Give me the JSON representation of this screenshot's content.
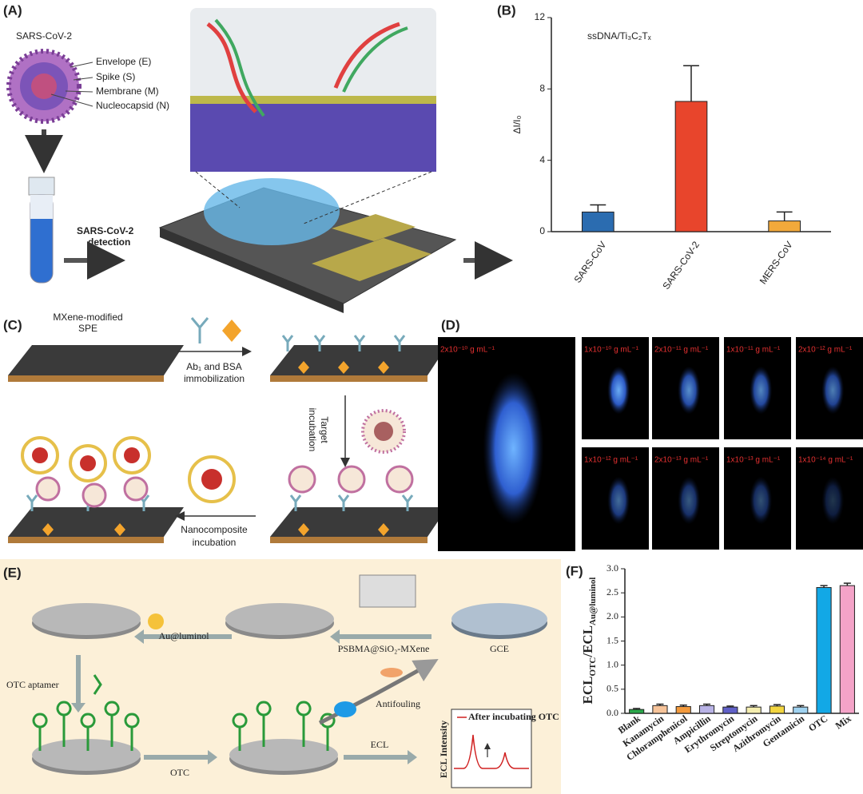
{
  "panel_labels": [
    "(A)",
    "(B)",
    "(C)",
    "(D)",
    "(E)",
    "(F)"
  ],
  "panel_a": {
    "virus_title": "SARS-CoV-2",
    "parts": [
      "Envelope (E)",
      "Spike (S)",
      "Membrane (M)",
      "Nucleocapsid (N)"
    ],
    "detection": [
      "SARS-CoV-2",
      "detection"
    ]
  },
  "panel_c": {
    "electrode": [
      "MXene-modified",
      "SPE"
    ],
    "step1": [
      "Ab₁ and BSA",
      "immobilization"
    ],
    "step2": [
      "Target",
      "incubation"
    ],
    "step3": [
      "Nanocomposite",
      "incubation"
    ]
  },
  "panel_d": {
    "labels": [
      "2x10⁻¹⁰ g mL⁻¹",
      "1x10⁻¹⁰ g mL⁻¹",
      "2x10⁻¹¹ g mL⁻¹",
      "1x10⁻¹¹ g mL⁻¹",
      "2x10⁻¹² g mL⁻¹",
      "1x10⁻¹² g mL⁻¹",
      "2x10⁻¹³ g mL⁻¹",
      "1x10⁻¹³ g mL⁻¹",
      "1x10⁻¹⁴ g mL⁻¹"
    ]
  },
  "panel_e": {
    "au": "Au@luminol",
    "psbma": "PSBMA@SiO₂-MXene",
    "gce": "GCE",
    "aptamer": "OTC aptamer",
    "antifouling": "Antifouling",
    "otc": "OTC",
    "ecl": "ECL",
    "ecl_axis": "ECL Intensity",
    "ecl_legend": "After incubating OTC"
  },
  "chart_data": [
    {
      "type": "bar",
      "annotation": "ssDNA/Ti₃C₂Tₓ",
      "ylabel": "ΔI/I₀",
      "categories": [
        "SARS-CoV",
        "SARS-CoV-2",
        "MERS-CoV"
      ],
      "values": [
        1.1,
        7.3,
        0.6
      ],
      "errors": [
        0.4,
        2.0,
        0.5
      ],
      "error_bars": "up",
      "colors": [
        "#2b6cb0",
        "#e8452c",
        "#f2a93b"
      ],
      "ylim": [
        0,
        12
      ],
      "yticks": [
        0,
        4,
        8,
        12
      ]
    },
    {
      "type": "bar",
      "ylabel": [
        "ECL",
        "OTC",
        "/ECL",
        "Au@luminol"
      ],
      "categories": [
        "Blank",
        "Kanamycin",
        "Chloramphenicol",
        "Ampicillin",
        "Erythromycin",
        "Streptomycin",
        "Azithromycin",
        "Gentamicin",
        "OTC",
        "Mix"
      ],
      "values": [
        0.08,
        0.16,
        0.14,
        0.16,
        0.13,
        0.13,
        0.15,
        0.13,
        2.61,
        2.65
      ],
      "errors": [
        0.02,
        0.03,
        0.03,
        0.03,
        0.02,
        0.03,
        0.03,
        0.03,
        0.04,
        0.05
      ],
      "error_bars": "both",
      "colors": [
        "#2aa84a",
        "#f7c49a",
        "#f39a3c",
        "#b9b3e6",
        "#6060c8",
        "#f5eeb0",
        "#f3d640",
        "#9fd2f0",
        "#12a8e6",
        "#f4a3c8"
      ],
      "ylim": [
        0,
        3.0
      ],
      "yticks": [
        {
          "value": 0,
          "label": "0.0"
        },
        0.5,
        {
          "value": 1,
          "label": "1.0"
        },
        1.5,
        {
          "value": 2,
          "label": "2.0"
        },
        2.5,
        {
          "value": 3,
          "label": "3.0"
        }
      ]
    }
  ]
}
